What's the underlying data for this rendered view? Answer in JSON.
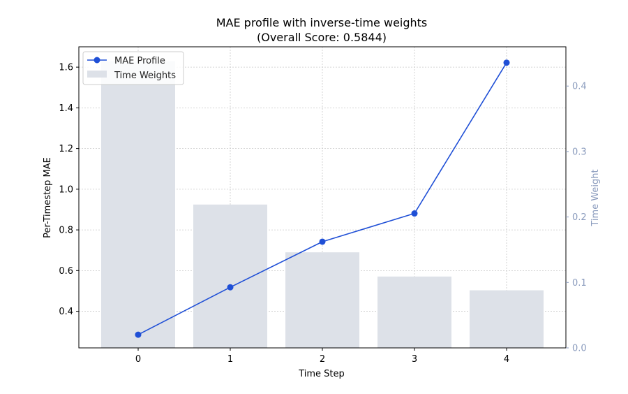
{
  "chart_data": {
    "type": "bar+line",
    "title_line1": "MAE profile with inverse-time weights",
    "title_line2": "(Overall Score: 0.5844)",
    "xlabel": "Time Step",
    "ylabel_left": "Per-Timestep MAE",
    "ylabel_right": "Time Weight",
    "x": [
      0,
      1,
      2,
      3,
      4
    ],
    "x_tick_labels": [
      "0",
      "1",
      "2",
      "3",
      "4"
    ],
    "left_axis": {
      "lim": [
        0.22,
        1.7
      ],
      "ticks": [
        0.4,
        0.6,
        0.8,
        1.0,
        1.2,
        1.4,
        1.6
      ],
      "tick_labels": [
        "0.4",
        "0.6",
        "0.8",
        "1.0",
        "1.2",
        "1.4",
        "1.6"
      ]
    },
    "right_axis": {
      "lim": [
        0.0,
        0.46
      ],
      "ticks": [
        0.0,
        0.1,
        0.2,
        0.3,
        0.4
      ],
      "tick_labels": [
        "0.0",
        "0.1",
        "0.2",
        "0.3",
        "0.4"
      ],
      "color": "#8a9bbd"
    },
    "series": [
      {
        "name": "MAE Profile",
        "kind": "line",
        "axis": "left",
        "color": "#1f4fd6",
        "values": [
          0.285,
          0.518,
          0.742,
          0.881,
          1.622
        ]
      },
      {
        "name": "Time Weights",
        "kind": "bar",
        "axis": "right",
        "color": "#dde1e8",
        "values": [
          0.438,
          0.219,
          0.146,
          0.109,
          0.088
        ]
      }
    ],
    "grid": true,
    "legend_position": "upper-left"
  }
}
